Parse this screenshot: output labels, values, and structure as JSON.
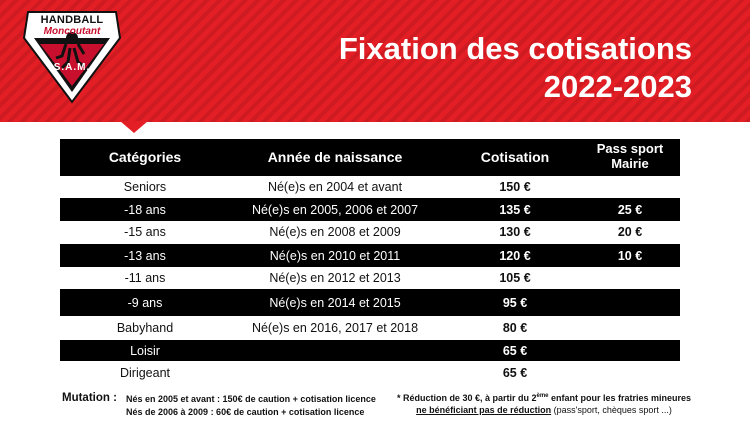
{
  "header": {
    "logo_line1": "HANDBALL",
    "logo_line2": "Moncoutant",
    "logo_line3": "S.A.M.",
    "title_line1": "Fixation des cotisations",
    "title_line2": "2022-2023"
  },
  "colors": {
    "brand_red": "#e41e25",
    "table_dark": "#000000"
  },
  "table": {
    "headers": {
      "category": "Catégories",
      "birth_year": "Année de naissance",
      "fee": "Cotisation",
      "pass_line1": "Pass sport",
      "pass_line2": "Mairie"
    },
    "rows": [
      {
        "category": "Seniors",
        "birth_year": "Né(e)s en 2004 et avant",
        "fee": "150 €",
        "pass": ""
      },
      {
        "category": "-18 ans",
        "birth_year": "Né(e)s en 2005, 2006 et 2007",
        "fee": "135 €",
        "pass": "25 €"
      },
      {
        "category": "-15 ans",
        "birth_year": "Né(e)s en 2008 et 2009",
        "fee": "130 €",
        "pass": "20 €"
      },
      {
        "category": "-13 ans",
        "birth_year": "Né(e)s en 2010 et 2011",
        "fee": "120 €",
        "pass": "10 €"
      },
      {
        "category": "-11 ans",
        "birth_year": "Né(e)s en 2012 et 2013",
        "fee": "105 €",
        "pass": ""
      },
      {
        "category": "-9 ans",
        "birth_year": "Né(e)s en 2014 et 2015",
        "fee": "95 €",
        "pass": ""
      },
      {
        "category": "Babyhand",
        "birth_year": "Né(e)s en 2016, 2017 et 2018",
        "fee": "80 €",
        "pass": ""
      },
      {
        "category": "Loisir",
        "birth_year": "",
        "fee": "65 €",
        "pass": ""
      },
      {
        "category": "Dirigeant",
        "birth_year": "",
        "fee": "65 €",
        "pass": ""
      }
    ]
  },
  "footer": {
    "mutation_label": "Mutation :",
    "mutation_line1": "Nés en 2005 et avant : 150€ de caution + cotisation licence",
    "mutation_line2": "Nés de 2006 à 2009 : 60€ de caution + cotisation licence",
    "note_part1": "* Réduction de 30 €, à partir du 2",
    "note_sup": "ème",
    "note_part2": " enfant pour les fratries mineures",
    "note_underlined": "ne bénéficiant pas de réduction",
    "note_part3": " (pass'sport, chèques sport ...)"
  }
}
